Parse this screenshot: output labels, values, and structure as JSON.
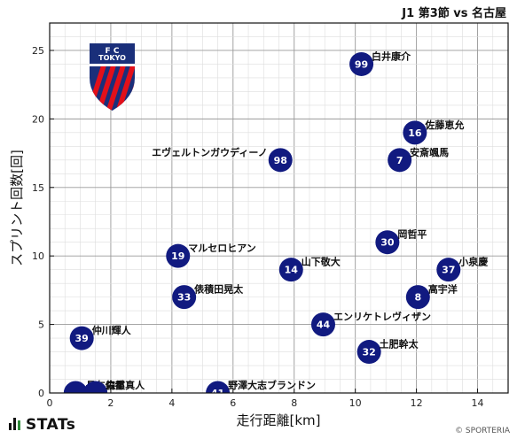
{
  "header": {
    "match": "J1 第3節 vs 名古屋"
  },
  "footer": {
    "brand": "STATs",
    "copyright": "© SPORTERIA"
  },
  "crest": {
    "text_top": "F      C",
    "text_mid": "TOKYO",
    "blue": "#1a2f7a",
    "red": "#e2101a"
  },
  "colors": {
    "marker": "#111a80",
    "grid": "#bbbbbb"
  },
  "chart_data": {
    "type": "scatter",
    "xlabel": "走行距離[km]",
    "ylabel": "スプリント回数[回]",
    "xlim": [
      0,
      15
    ],
    "ylim": [
      0,
      27
    ],
    "xticks": [
      0,
      2,
      4,
      6,
      8,
      10,
      12,
      14
    ],
    "yticks": [
      0,
      5,
      10,
      15,
      20,
      25
    ],
    "grid": true,
    "points": [
      {
        "number": "99",
        "name": "白井康介",
        "x": 10.2,
        "y": 24
      },
      {
        "number": "16",
        "name": "佐藤恵允",
        "x": 11.95,
        "y": 19
      },
      {
        "number": "98",
        "name": "エヴェルトンガウディーノ",
        "x": 7.55,
        "y": 17,
        "label_side": "left"
      },
      {
        "number": "7",
        "name": "安斎颯馬",
        "x": 11.45,
        "y": 17
      },
      {
        "number": "30",
        "name": "岡哲平",
        "x": 11.05,
        "y": 11
      },
      {
        "number": "19",
        "name": "マルセロヒアン",
        "x": 4.2,
        "y": 10
      },
      {
        "number": "14",
        "name": "山下敬大",
        "x": 7.9,
        "y": 9
      },
      {
        "number": "37",
        "name": "小泉慶",
        "x": 13.05,
        "y": 9
      },
      {
        "number": "33",
        "name": "俵積田晃太",
        "x": 4.4,
        "y": 7
      },
      {
        "number": "8",
        "name": "高宇洋",
        "x": 12.05,
        "y": 7
      },
      {
        "number": "44",
        "name": "エンリケトレヴィザン",
        "x": 8.95,
        "y": 5
      },
      {
        "number": "39",
        "name": "仲川輝人",
        "x": 1.05,
        "y": 4
      },
      {
        "number": "32",
        "name": "土肥幹太",
        "x": 10.45,
        "y": 3
      },
      {
        "number": "41",
        "name": "野澤大志ブランドン",
        "x": 5.5,
        "y": 0
      },
      {
        "number": "",
        "name": "長友佑都",
        "x": 0.85,
        "y": 0
      },
      {
        "number": "",
        "name": "森重真人",
        "x": 1.5,
        "y": 0
      }
    ]
  }
}
